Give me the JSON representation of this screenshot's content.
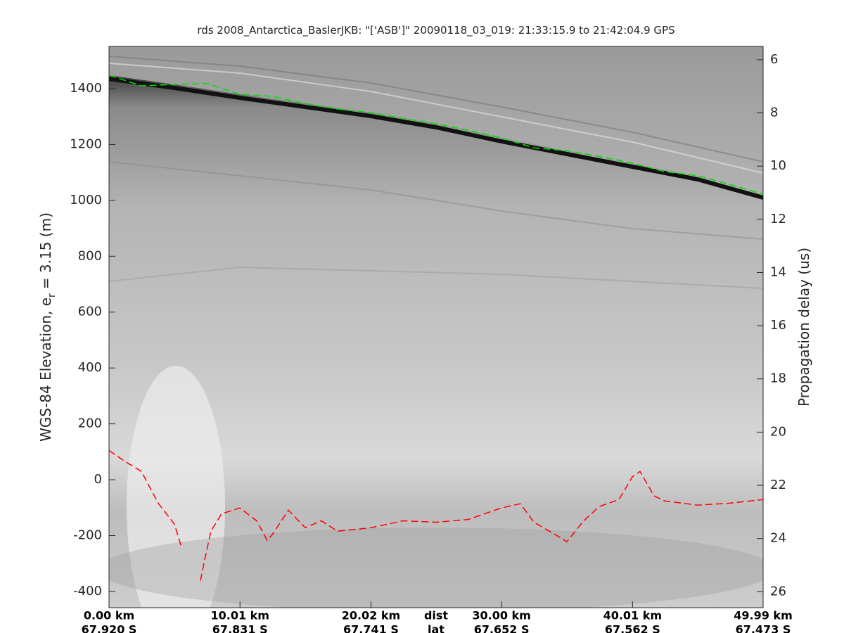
{
  "chart_data": {
    "type": "line",
    "title": "rds 2008_Antarctica_BaslerJKB: \"['ASB']\"  20090118_03_019: 21:33:15.9 to 21:42:04.9 GPS",
    "ylabel": [
      "WGS-84 Elevation, e",
      "r",
      "= 3.15 (m)"
    ],
    "y2label": "Propagation delay (us)",
    "xlabel": "dist",
    "xlabel2": "lat",
    "xlim": [
      0,
      49.99
    ],
    "xticks": [
      {
        "value": 0,
        "label": "0.00 km"
      },
      {
        "value": 10.01,
        "label": "10.01 km"
      },
      {
        "value": 20.02,
        "label": "20.02 km"
      },
      {
        "value": 30.0,
        "label": "30.00 km"
      },
      {
        "value": 40.01,
        "label": "40.01 km"
      },
      {
        "value": 49.99,
        "label": "49.99 km"
      }
    ],
    "lat_labels": [
      "67.920 S",
      "67.831 S",
      "67.741 S",
      "67.652 S",
      "67.562 S",
      "67.473 S"
    ],
    "ylim": [
      -458,
      1551
    ],
    "yticks": [
      -400,
      -200,
      0,
      200,
      400,
      600,
      800,
      1000,
      1200,
      1400
    ],
    "y2lim": [
      26.6,
      5.5
    ],
    "y2ticks": [
      6,
      8,
      10,
      12,
      14,
      16,
      18,
      20,
      22,
      24,
      26
    ],
    "series": [
      {
        "color": "#00e000",
        "linestyle": "dashed",
        "x": [
          0,
          2.47,
          5.0,
          7.47,
          10.0,
          12.47,
          15.0,
          17.47,
          20.0,
          22.47,
          25.0,
          27.47,
          30.0,
          32.47,
          35.0,
          37.47,
          40.0,
          42.47,
          45.0,
          47.47,
          49.99
        ],
        "values": [
          1448,
          1410,
          1415,
          1418,
          1380,
          1372,
          1347,
          1327,
          1314,
          1294,
          1274,
          1251,
          1224,
          1188,
          1178,
          1158,
          1133,
          1103,
          1088,
          1057,
          1022
        ]
      },
      {
        "color": "#ff0000",
        "linestyle": "dashed",
        "x": [
          0,
          1.24,
          2.47,
          3.76,
          5.0,
          5.54,
          6.2,
          6.99,
          7.26,
          7.79,
          8.6,
          10.0,
          11.29,
          12.09,
          12.47,
          13.71,
          15.0,
          16.23,
          17.47,
          20.0,
          22.47,
          25.0,
          27.47,
          29.99,
          31.44,
          32.47,
          34.13,
          34.99,
          36.28,
          37.46,
          38.97,
          39.99,
          40.58,
          41.66,
          42.47,
          44.99,
          47.46,
          49.99
        ],
        "values": [
          105,
          65,
          30,
          -84,
          -159,
          -242,
          null,
          -361,
          -298,
          -184,
          -122,
          -101,
          -147,
          -217,
          -197,
          -109,
          -172,
          -147,
          -184,
          -172,
          -147,
          -152,
          -142,
          -101,
          -86,
          -152,
          -197,
          -222,
          -147,
          -96,
          -71,
          10,
          30,
          -58,
          -76,
          -91,
          -84,
          -71
        ]
      }
    ]
  }
}
